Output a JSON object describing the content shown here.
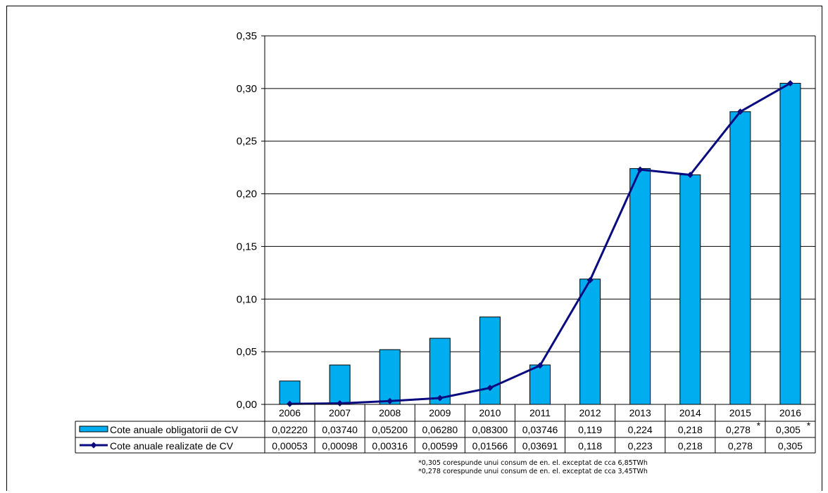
{
  "chart_data": {
    "type": "bar",
    "categories": [
      "2006",
      "2007",
      "2008",
      "2009",
      "2010",
      "2011",
      "2012",
      "2013",
      "2014",
      "2015",
      "2016"
    ],
    "series": [
      {
        "name": "Cote anuale obligatorii de CV",
        "kind": "bar",
        "color": "#00AEEF",
        "values": [
          0.0222,
          0.0374,
          0.052,
          0.0628,
          0.083,
          0.03746,
          0.119,
          0.224,
          0.218,
          0.278,
          0.305
        ],
        "labels": [
          "0,02220",
          "0,03740",
          "0,05200",
          "0,06280",
          "0,08300",
          "0,03746",
          "0,119",
          "0,224",
          "0,218",
          "0,278",
          "0,305"
        ],
        "marks": [
          "",
          "",
          "",
          "",
          "",
          "",
          "",
          "",
          "",
          "*",
          "*"
        ]
      },
      {
        "name": "Cote anuale realizate de CV",
        "kind": "line",
        "color": "#0A0A80",
        "values": [
          0.00053,
          0.00098,
          0.00316,
          0.00599,
          0.01566,
          0.03691,
          0.118,
          0.223,
          0.218,
          0.278,
          0.305
        ],
        "labels": [
          "0,00053",
          "0,00098",
          "0,00316",
          "0,00599",
          "0,01566",
          "0,03691",
          "0,118",
          "0,223",
          "0,218",
          "0,278",
          "0,305"
        ],
        "marks": [
          "",
          "",
          "",
          "",
          "",
          "",
          "",
          "",
          "",
          "",
          ""
        ]
      }
    ],
    "ylim": [
      0,
      0.35
    ],
    "yticks": [
      0,
      0.05,
      0.1,
      0.15,
      0.2,
      0.25,
      0.3,
      0.35
    ],
    "ytick_labels": [
      "0,00",
      "0,05",
      "0,10",
      "0,15",
      "0,20",
      "0,25",
      "0,30",
      "0,35"
    ],
    "grid": true,
    "legend": "data-table",
    "notes": [
      "*0,305 corespunde unui consum de en. el. exceptat de cca 6,85TWh",
      "*0,278 corespunde unui consum de en. el. exceptat de cca 3,45TWh"
    ]
  }
}
